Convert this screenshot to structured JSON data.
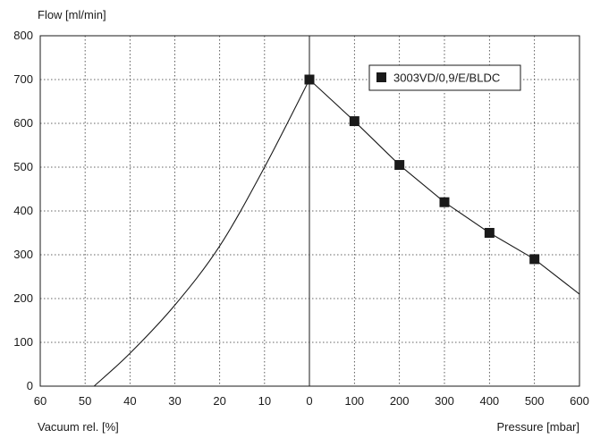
{
  "chart_data": {
    "type": "line",
    "ylabel": "Flow [ml/min]",
    "xlabel_left": "Vacuum rel. [%]",
    "xlabel_right": "Pressure [mbar]",
    "ylim": [
      0,
      800
    ],
    "y_ticks": [
      "0",
      "100",
      "200",
      "300",
      "400",
      "500",
      "600",
      "700",
      "800"
    ],
    "x_ticks_vacuum": [
      "60",
      "50",
      "40",
      "30",
      "20",
      "10",
      "0"
    ],
    "x_ticks_pressure": [
      "100",
      "200",
      "300",
      "400",
      "500",
      "600"
    ],
    "grid": true,
    "legend_position": "top-right",
    "series": [
      {
        "name": "3003VD/0,9/E/BLDC",
        "color": "#1a1a1a",
        "vacuum_pct": [
          48,
          40,
          30,
          20,
          10,
          0
        ],
        "vacuum_flow": [
          0,
          75,
          185,
          320,
          500,
          700
        ],
        "pressure_mbar": [
          0,
          100,
          200,
          300,
          400,
          500,
          600
        ],
        "pressure_flow": [
          700,
          605,
          505,
          420,
          350,
          290,
          210
        ],
        "marker_pressure_mbar": [
          0,
          100,
          200,
          300,
          400,
          500
        ],
        "marker_flow": [
          700,
          605,
          505,
          420,
          350,
          290
        ]
      }
    ]
  }
}
